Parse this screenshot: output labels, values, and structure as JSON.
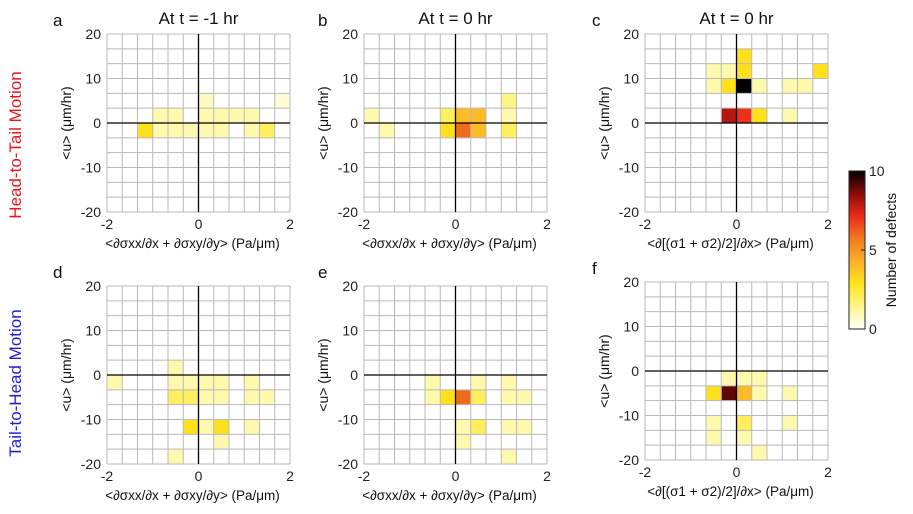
{
  "row_labels": [
    {
      "text": "Head-to-Tail Motion",
      "color": "#e8161b"
    },
    {
      "text": "Tail-to-Head Motion",
      "color": "#1f1fd6"
    }
  ],
  "colorbar": {
    "label": "Number of defects",
    "ticks": [
      "10",
      "5",
      "0"
    ],
    "range": [
      0,
      10
    ],
    "colormap": [
      "#ffffff",
      "#fff68a",
      "#ffe51c",
      "#fbb02a",
      "#f07a1f",
      "#ee2a18",
      "#8b0a0a",
      "#000000"
    ]
  },
  "chart_data": [
    {
      "type": "heatmap",
      "panel": "a",
      "title": "At t = -1 hr",
      "ylabel": "<u> (μm/hr)",
      "xlabel": "<∂σxx/∂x + ∂σxy/∂y> (Pa/μm)",
      "xlim": [
        -2,
        2
      ],
      "ylim": [
        -20,
        20
      ],
      "x_ticks": [
        "-2",
        "0",
        "2"
      ],
      "y_ticks": [
        "20",
        "10",
        "0",
        "-10",
        "-20"
      ],
      "x_bins": [
        -2.0,
        -1.6667,
        -1.3333,
        -1.0,
        -0.6667,
        -0.3333,
        0.0,
        0.3333,
        0.6667,
        1.0,
        1.3333,
        1.6667,
        2.0
      ],
      "y_bins": [
        -20.0,
        -16.667,
        -13.333,
        -10.0,
        -6.667,
        -3.333,
        0.0,
        3.333,
        6.667,
        10.0,
        13.333,
        16.667,
        20.0
      ],
      "cells": [
        [
          0.5,
          3.3,
          0.5
        ],
        [
          4.5,
          5.0,
          0.5
        ],
        [
          1.1,
          3.0,
          2.6
        ],
        [
          0.3,
          4.5,
          0.8
        ],
        [
          -0.9,
          2.4,
          1
        ],
        [
          -0.6,
          2.4,
          1
        ],
        [
          0.3,
          2.4,
          1
        ],
        [
          0.6,
          2.4,
          1
        ],
        [
          0.9,
          2.4,
          1
        ],
        [
          1.3,
          2.4,
          1
        ],
        [
          -1.1,
          0.0,
          3
        ],
        [
          -0.3,
          0.0,
          3
        ],
        [
          0.1,
          0.0,
          3
        ],
        [
          0.3,
          0.0,
          4
        ],
        [
          0.6,
          0.0,
          6
        ],
        [
          1.0,
          0.0,
          4
        ],
        [
          1.3,
          0.0,
          3
        ],
        [
          1.6,
          0.0,
          2
        ],
        [
          -0.9,
          -2.4,
          1
        ],
        [
          -0.6,
          -2.4,
          1
        ],
        [
          -0.3,
          -2.4,
          1
        ],
        [
          0.1,
          -2.4,
          1
        ],
        [
          0.6,
          -2.4,
          1
        ],
        [
          1.0,
          -2.4,
          1
        ]
      ]
    },
    {
      "type": "heatmap",
      "panel": "b",
      "title": "At t = 0 hr",
      "ylabel": "<u> (μm/hr)",
      "xlabel": "<∂σxx/∂x + ∂σxy/∂y> (Pa/μm)",
      "xlim": [
        -2,
        2
      ],
      "ylim": [
        -20,
        20
      ],
      "x_ticks": [
        "-2",
        "0",
        "2"
      ],
      "y_ticks": [
        "20",
        "10",
        "0",
        "-10",
        "-20"
      ],
      "x_bins": [
        -2.0,
        -1.6667,
        -1.3333,
        -1.0,
        -0.6667,
        -0.3333,
        0.0,
        0.3333,
        0.6667,
        1.0,
        1.3333,
        1.6667,
        2.0
      ],
      "y_bins": [
        -20.0,
        -16.667,
        -13.333,
        -10.0,
        -6.667,
        -3.333,
        0.0,
        3.333,
        6.667,
        10.0,
        13.333,
        16.667,
        20.0
      ],
      "cells": [
        [
          0.3,
          3.3,
          2
        ],
        [
          0.6,
          3.3,
          2
        ],
        [
          1.0,
          4.5,
          1.5
        ],
        [
          -1.9,
          2.4,
          1
        ],
        [
          -0.3,
          2.4,
          2
        ],
        [
          0.1,
          2.4,
          3
        ],
        [
          0.3,
          2.4,
          4
        ],
        [
          0.6,
          2.4,
          4
        ],
        [
          1.0,
          2.4,
          2
        ],
        [
          1.3,
          2.4,
          1
        ],
        [
          -1.6,
          0.0,
          1
        ],
        [
          -0.3,
          0.0,
          3
        ],
        [
          0.1,
          0.0,
          3
        ],
        [
          0.3,
          0.0,
          6
        ],
        [
          0.6,
          0.0,
          4
        ],
        [
          1.0,
          0.0,
          2
        ]
      ]
    },
    {
      "type": "heatmap",
      "panel": "c",
      "title": "At t = 0 hr",
      "ylabel": "<u> (μm/hr)",
      "xlabel": "<∂[(σ1 + σ2)/2]/∂x> (Pa/μm)",
      "xlim": [
        -2,
        2
      ],
      "ylim": [
        -20,
        20
      ],
      "x_ticks": [
        "-2",
        "0",
        "2"
      ],
      "y_ticks": [
        "20",
        "10",
        "0",
        "-10",
        "-20"
      ],
      "x_bins": [
        -2.0,
        -1.6667,
        -1.3333,
        -1.0,
        -0.6667,
        -0.3333,
        0.0,
        0.3333,
        0.6667,
        1.0,
        1.3333,
        1.6667,
        2.0
      ],
      "y_bins": [
        -20.0,
        -16.667,
        -13.333,
        -10.0,
        -6.667,
        -3.333,
        0.0,
        3.333,
        6.667,
        10.0,
        13.333,
        16.667,
        20.0
      ],
      "cells": [
        [
          0.3,
          15.0,
          3
        ],
        [
          0.3,
          11.7,
          3
        ],
        [
          -0.6,
          11.0,
          1
        ],
        [
          -0.3,
          11.0,
          1
        ],
        [
          1.9,
          11.0,
          3
        ],
        [
          -0.6,
          7.0,
          1
        ],
        [
          -0.3,
          7.0,
          3
        ],
        [
          0.3,
          7.0,
          10
        ],
        [
          0.6,
          7.0,
          1
        ],
        [
          1.0,
          7.0,
          1
        ],
        [
          1.5,
          7.0,
          1
        ],
        [
          -0.3,
          2.4,
          8
        ],
        [
          0.1,
          2.4,
          1
        ],
        [
          0.3,
          2.4,
          7
        ],
        [
          0.6,
          2.4,
          3
        ],
        [
          1.0,
          2.4,
          1
        ]
      ]
    },
    {
      "type": "heatmap",
      "panel": "d",
      "title": "",
      "ylabel": "<u> (μm/hr)",
      "xlabel": "<∂σxx/∂x + ∂σxy/∂y> (Pa/μm)",
      "xlim": [
        -2,
        2
      ],
      "ylim": [
        -20,
        20
      ],
      "x_ticks": [
        "-2",
        "0",
        "2"
      ],
      "y_ticks": [
        "20",
        "10",
        "0",
        "-10",
        "-20"
      ],
      "x_bins": [
        -2.0,
        -1.6667,
        -1.3333,
        -1.0,
        -0.6667,
        -0.3333,
        0.0,
        0.3333,
        0.6667,
        1.0,
        1.3333,
        1.6667,
        2.0
      ],
      "y_bins": [
        -20.0,
        -16.667,
        -13.333,
        -10.0,
        -6.667,
        -3.333,
        0.0,
        3.333,
        6.667,
        10.0,
        13.333,
        16.667,
        20.0
      ],
      "cells": [
        [
          -0.6,
          1.7,
          1
        ],
        [
          -1.9,
          -2.4,
          1
        ],
        [
          -0.6,
          -2.4,
          1
        ],
        [
          -0.3,
          -2.4,
          1
        ],
        [
          0.1,
          -2.4,
          2
        ],
        [
          0.3,
          -2.4,
          1
        ],
        [
          0.6,
          -2.4,
          1
        ],
        [
          1.0,
          -2.4,
          1
        ],
        [
          -0.6,
          -6.4,
          2
        ],
        [
          -0.3,
          -6.4,
          2
        ],
        [
          0.3,
          -6.4,
          1
        ],
        [
          0.6,
          -6.4,
          1
        ],
        [
          1.0,
          -6.4,
          1
        ],
        [
          1.6,
          -6.4,
          1
        ],
        [
          -0.3,
          -10.9,
          3
        ],
        [
          0.1,
          -10.9,
          1
        ],
        [
          0.3,
          -10.9,
          1
        ],
        [
          0.6,
          -10.9,
          3
        ],
        [
          1.0,
          -10.9,
          1
        ],
        [
          0.6,
          -14.8,
          1
        ],
        [
          -0.6,
          -18.5,
          1
        ]
      ]
    },
    {
      "type": "heatmap",
      "panel": "e",
      "title": "",
      "ylabel": "<u> (μm/hr)",
      "xlabel": "<∂σxx/∂x + ∂σxy/∂y> (Pa/μm)",
      "xlim": [
        -2,
        2
      ],
      "ylim": [
        -20,
        20
      ],
      "x_ticks": [
        "-2",
        "0",
        "2"
      ],
      "y_ticks": [
        "20",
        "10",
        "0",
        "-10",
        "-20"
      ],
      "x_bins": [
        -2.0,
        -1.6667,
        -1.3333,
        -1.0,
        -0.6667,
        -0.3333,
        0.0,
        0.3333,
        0.6667,
        1.0,
        1.3333,
        1.6667,
        2.0
      ],
      "y_bins": [
        -20.0,
        -16.667,
        -13.333,
        -10.0,
        -6.667,
        -3.333,
        0.0,
        3.333,
        6.667,
        10.0,
        13.333,
        16.667,
        20.0
      ],
      "cells": [
        [
          -0.6,
          -2.4,
          1
        ],
        [
          0.6,
          -2.4,
          1
        ],
        [
          1.3,
          -2.4,
          1
        ],
        [
          -0.6,
          -6.4,
          1
        ],
        [
          -0.3,
          -6.4,
          3
        ],
        [
          0.1,
          -6.4,
          4
        ],
        [
          0.3,
          -6.4,
          6
        ],
        [
          0.6,
          -6.4,
          2
        ],
        [
          1.0,
          -6.4,
          1
        ],
        [
          1.3,
          -6.4,
          1
        ],
        [
          1.6,
          -6.4,
          1
        ],
        [
          0.3,
          -10.9,
          1
        ],
        [
          0.6,
          -10.9,
          2
        ],
        [
          1.0,
          -10.9,
          1
        ],
        [
          1.3,
          -10.9,
          1
        ],
        [
          1.6,
          -10.9,
          1
        ],
        [
          0.3,
          -14.8,
          1
        ],
        [
          1.3,
          -18.5,
          1
        ]
      ]
    },
    {
      "type": "heatmap",
      "panel": "f",
      "title": "",
      "ylabel": "<u> (μm/hr)",
      "xlabel": "<∂[(σ1 + σ2)/2]/∂x> (Pa/μm)",
      "xlim": [
        -2,
        2
      ],
      "ylim": [
        -20,
        20
      ],
      "x_ticks": [
        "-2",
        "0",
        "2"
      ],
      "y_ticks": [
        "20",
        "10",
        "0",
        "-10",
        "-20"
      ],
      "x_bins": [
        -2.0,
        -1.6667,
        -1.3333,
        -1.0,
        -0.6667,
        -0.3333,
        0.0,
        0.3333,
        0.6667,
        1.0,
        1.3333,
        1.6667,
        2.0
      ],
      "y_bins": [
        -20.0,
        -16.667,
        -13.333,
        -10.0,
        -6.667,
        -3.333,
        0.0,
        3.333,
        6.667,
        10.0,
        13.333,
        16.667,
        20.0
      ],
      "cells": [
        [
          -0.3,
          -2.4,
          1
        ],
        [
          0.1,
          -2.4,
          1
        ],
        [
          0.3,
          -2.4,
          1
        ],
        [
          0.6,
          -2.4,
          1
        ],
        [
          -0.6,
          -6.4,
          3
        ],
        [
          -0.3,
          -6.4,
          9
        ],
        [
          0.1,
          -6.4,
          5
        ],
        [
          0.3,
          -6.4,
          4
        ],
        [
          0.6,
          -6.4,
          1
        ],
        [
          1.0,
          -6.4,
          1
        ],
        [
          -0.6,
          -10.4,
          1
        ],
        [
          0.1,
          -10.4,
          2
        ],
        [
          1.3,
          -10.4,
          1
        ],
        [
          -0.6,
          -14.5,
          1
        ],
        [
          0.1,
          -14.5,
          1
        ],
        [
          0.6,
          -18.0,
          1
        ]
      ]
    }
  ]
}
